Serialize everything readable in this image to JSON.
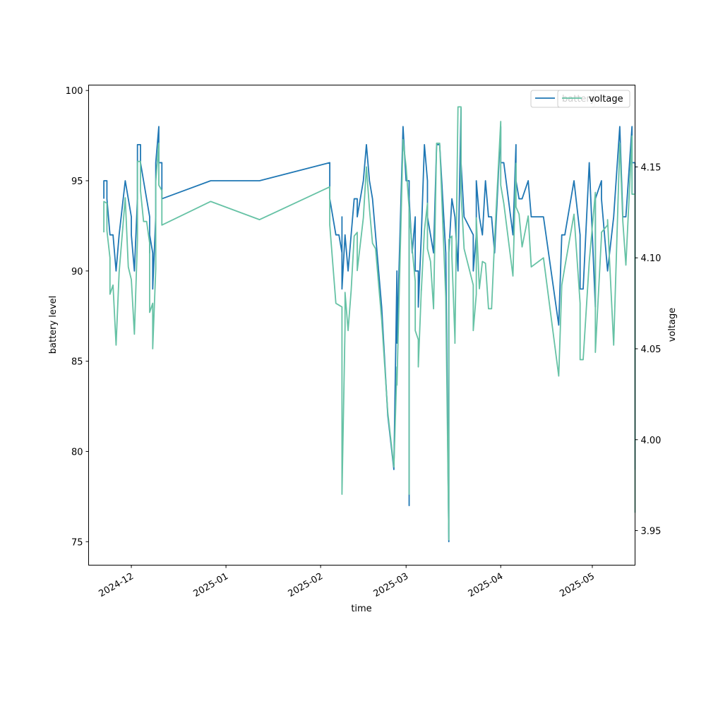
{
  "chart_data": {
    "type": "line",
    "xlabel": "time",
    "ylabel_left": "battery level",
    "ylabel_right": "voltage",
    "xlim": [
      "2024-11-17",
      "2025-05-15"
    ],
    "ylim_left": [
      73.7,
      100.3
    ],
    "ylim_right": [
      3.931,
      4.195
    ],
    "x_ticks": [
      {
        "date": "2024-12-01",
        "label": "2024-12"
      },
      {
        "date": "2025-01-01",
        "label": "2025-01"
      },
      {
        "date": "2025-02-01",
        "label": "2025-02"
      },
      {
        "date": "2025-03-01",
        "label": "2025-03"
      },
      {
        "date": "2025-04-01",
        "label": "2025-04"
      },
      {
        "date": "2025-05-01",
        "label": "2025-05"
      }
    ],
    "y_ticks_left": [
      75,
      80,
      85,
      90,
      95,
      100
    ],
    "y_ticks_right": [
      3.95,
      4.0,
      4.05,
      4.1,
      4.15
    ],
    "y_tick_labels_right": [
      "3.95",
      "4.00",
      "4.05",
      "4.10",
      "4.15"
    ],
    "grid": false,
    "legend": [
      {
        "name": "battery",
        "location": "top-right"
      },
      {
        "name": "voltage",
        "location": "top-right"
      }
    ],
    "series": [
      {
        "name": "battery",
        "axis": "left",
        "color": "#1f77b4",
        "points": [
          [
            "2024-11-22",
            94
          ],
          [
            "2024-11-22",
            95
          ],
          [
            "2024-11-23",
            95
          ],
          [
            "2024-11-23",
            94
          ],
          [
            "2024-11-24",
            92
          ],
          [
            "2024-11-25",
            92
          ],
          [
            "2024-11-26",
            90
          ],
          [
            "2024-11-27",
            92
          ],
          [
            "2024-11-29",
            95
          ],
          [
            "2024-11-30",
            94
          ],
          [
            "2024-11-30",
            94
          ],
          [
            "2024-12-01",
            93
          ],
          [
            "2024-12-01",
            92
          ],
          [
            "2024-12-02",
            90
          ],
          [
            "2024-12-03",
            94
          ],
          [
            "2024-12-03",
            97
          ],
          [
            "2024-12-04",
            97
          ],
          [
            "2024-12-04",
            96
          ],
          [
            "2024-12-05",
            95
          ],
          [
            "2024-12-07",
            93
          ],
          [
            "2024-12-07",
            91
          ],
          [
            "2024-12-07",
            92
          ],
          [
            "2024-12-08",
            91
          ],
          [
            "2024-12-08",
            89
          ],
          [
            "2024-12-09",
            93
          ],
          [
            "2024-12-09",
            96
          ],
          [
            "2024-12-10",
            98
          ],
          [
            "2024-12-10",
            96
          ],
          [
            "2024-12-11",
            96
          ],
          [
            "2024-12-11",
            94
          ],
          [
            "2024-12-27",
            95
          ],
          [
            "2025-01-12",
            95
          ],
          [
            "2025-02-04",
            96
          ],
          [
            "2025-02-04",
            94
          ],
          [
            "2025-02-06",
            92
          ],
          [
            "2025-02-07",
            92
          ],
          [
            "2025-02-08",
            91
          ],
          [
            "2025-02-08",
            93
          ],
          [
            "2025-02-08",
            89
          ],
          [
            "2025-02-09",
            92
          ],
          [
            "2025-02-09",
            92
          ],
          [
            "2025-02-10",
            90
          ],
          [
            "2025-02-10",
            90
          ],
          [
            "2025-02-11",
            92
          ],
          [
            "2025-02-12",
            94
          ],
          [
            "2025-02-13",
            94
          ],
          [
            "2025-02-13",
            93
          ],
          [
            "2025-02-15",
            95
          ],
          [
            "2025-02-16",
            97
          ],
          [
            "2025-02-17",
            95
          ],
          [
            "2025-02-17",
            95
          ],
          [
            "2025-02-18",
            94
          ],
          [
            "2025-02-18",
            94
          ],
          [
            "2025-02-19",
            92
          ],
          [
            "2025-02-21",
            88
          ],
          [
            "2025-02-23",
            82
          ],
          [
            "2025-02-25",
            79
          ],
          [
            "2025-02-26",
            90
          ],
          [
            "2025-02-26",
            86
          ],
          [
            "2025-02-28",
            98
          ],
          [
            "2025-03-01",
            95
          ],
          [
            "2025-03-02",
            95
          ],
          [
            "2025-03-02",
            77
          ],
          [
            "2025-03-02",
            94
          ],
          [
            "2025-03-03",
            91
          ],
          [
            "2025-03-04",
            93
          ],
          [
            "2025-03-04",
            90
          ],
          [
            "2025-03-05",
            90
          ],
          [
            "2025-03-05",
            88
          ],
          [
            "2025-03-06",
            92
          ],
          [
            "2025-03-06",
            92
          ],
          [
            "2025-03-07",
            97
          ],
          [
            "2025-03-08",
            95
          ],
          [
            "2025-03-08",
            93
          ],
          [
            "2025-03-09",
            92
          ],
          [
            "2025-03-10",
            91
          ],
          [
            "2025-03-11",
            97
          ],
          [
            "2025-03-12",
            97
          ],
          [
            "2025-03-13",
            94
          ],
          [
            "2025-03-14",
            91
          ],
          [
            "2025-03-15",
            75
          ],
          [
            "2025-03-15",
            91
          ],
          [
            "2025-03-16",
            94
          ],
          [
            "2025-03-16",
            94
          ],
          [
            "2025-03-17",
            93
          ],
          [
            "2025-03-17",
            93
          ],
          [
            "2025-03-18",
            90
          ],
          [
            "2025-03-19",
            99
          ],
          [
            "2025-03-19",
            99
          ],
          [
            "2025-03-19",
            96
          ],
          [
            "2025-03-20",
            93
          ],
          [
            "2025-03-23",
            92
          ],
          [
            "2025-03-23",
            90
          ],
          [
            "2025-03-23",
            90
          ],
          [
            "2025-03-24",
            92
          ],
          [
            "2025-03-24",
            95
          ],
          [
            "2025-03-25",
            93
          ],
          [
            "2025-03-26",
            92
          ],
          [
            "2025-03-27",
            95
          ],
          [
            "2025-03-28",
            93
          ],
          [
            "2025-03-29",
            93
          ],
          [
            "2025-03-30",
            91
          ],
          [
            "2025-04-01",
            98
          ],
          [
            "2025-04-01",
            96
          ],
          [
            "2025-04-02",
            96
          ],
          [
            "2025-04-05",
            92
          ],
          [
            "2025-04-06",
            97
          ],
          [
            "2025-04-06",
            95
          ],
          [
            "2025-04-07",
            94
          ],
          [
            "2025-04-08",
            94
          ],
          [
            "2025-04-10",
            95
          ],
          [
            "2025-04-11",
            93
          ],
          [
            "2025-04-15",
            93
          ],
          [
            "2025-04-20",
            87
          ],
          [
            "2025-04-21",
            92
          ],
          [
            "2025-04-22",
            92
          ],
          [
            "2025-04-25",
            95
          ],
          [
            "2025-04-27",
            92
          ],
          [
            "2025-04-27",
            89
          ],
          [
            "2025-04-28",
            89
          ],
          [
            "2025-04-30",
            96
          ],
          [
            "2025-05-02",
            88
          ],
          [
            "2025-05-02",
            94
          ],
          [
            "2025-05-04",
            95
          ],
          [
            "2025-05-04",
            94
          ],
          [
            "2025-05-06",
            90
          ],
          [
            "2025-05-08",
            93
          ],
          [
            "2025-05-10",
            98
          ],
          [
            "2025-05-11",
            93
          ],
          [
            "2025-05-12",
            93
          ],
          [
            "2025-05-14",
            98
          ],
          [
            "2025-05-14",
            96
          ],
          [
            "2025-05-15",
            96
          ],
          [
            "2025-05-15",
            79
          ],
          [
            "2025-05-15",
            94
          ]
        ]
      },
      {
        "name": "voltage",
        "axis": "right",
        "color": "#66c2a5",
        "points": [
          [
            "2024-11-22",
            4.114
          ],
          [
            "2024-11-22",
            4.131
          ],
          [
            "2024-11-23",
            4.13
          ],
          [
            "2024-11-23",
            4.115
          ],
          [
            "2024-11-24",
            4.1
          ],
          [
            "2024-11-24",
            4.08
          ],
          [
            "2024-11-25",
            4.085
          ],
          [
            "2024-11-26",
            4.052
          ],
          [
            "2024-11-27",
            4.092
          ],
          [
            "2024-11-29",
            4.133
          ],
          [
            "2024-11-30",
            4.095
          ],
          [
            "2024-12-01",
            4.088
          ],
          [
            "2024-12-02",
            4.058
          ],
          [
            "2024-12-03",
            4.11
          ],
          [
            "2024-12-03",
            4.153
          ],
          [
            "2024-12-04",
            4.153
          ],
          [
            "2024-12-04",
            4.137
          ],
          [
            "2024-12-05",
            4.12
          ],
          [
            "2024-12-06",
            4.12
          ],
          [
            "2024-12-07",
            4.108
          ],
          [
            "2024-12-07",
            4.07
          ],
          [
            "2024-12-08",
            4.075
          ],
          [
            "2024-12-08",
            4.05
          ],
          [
            "2024-12-09",
            4.094
          ],
          [
            "2024-12-09",
            4.142
          ],
          [
            "2024-12-10",
            4.163
          ],
          [
            "2024-12-10",
            4.14
          ],
          [
            "2024-12-11",
            4.137
          ],
          [
            "2024-12-11",
            4.118
          ],
          [
            "2024-12-27",
            4.131
          ],
          [
            "2025-01-12",
            4.121
          ],
          [
            "2025-02-04",
            4.139
          ],
          [
            "2025-02-04",
            4.118
          ],
          [
            "2025-02-06",
            4.075
          ],
          [
            "2025-02-07",
            4.074
          ],
          [
            "2025-02-08",
            4.073
          ],
          [
            "2025-02-08",
            3.97
          ],
          [
            "2025-02-09",
            4.062
          ],
          [
            "2025-02-09",
            4.081
          ],
          [
            "2025-02-10",
            4.06
          ],
          [
            "2025-02-11",
            4.082
          ],
          [
            "2025-02-12",
            4.112
          ],
          [
            "2025-02-13",
            4.114
          ],
          [
            "2025-02-13",
            4.093
          ],
          [
            "2025-02-15",
            4.122
          ],
          [
            "2025-02-16",
            4.15
          ],
          [
            "2025-02-17",
            4.127
          ],
          [
            "2025-02-17",
            4.127
          ],
          [
            "2025-02-18",
            4.108
          ],
          [
            "2025-02-19",
            4.105
          ],
          [
            "2025-02-21",
            4.066
          ],
          [
            "2025-02-23",
            4.015
          ],
          [
            "2025-02-25",
            3.985
          ],
          [
            "2025-02-26",
            4.04
          ],
          [
            "2025-02-26",
            4.03
          ],
          [
            "2025-02-28",
            4.165
          ],
          [
            "2025-03-01",
            4.15
          ],
          [
            "2025-03-02",
            4.127
          ],
          [
            "2025-03-02",
            3.97
          ],
          [
            "2025-03-02",
            4.127
          ],
          [
            "2025-03-03",
            4.105
          ],
          [
            "2025-03-04",
            4.087
          ],
          [
            "2025-03-04",
            4.06
          ],
          [
            "2025-03-05",
            4.055
          ],
          [
            "2025-03-05",
            4.04
          ],
          [
            "2025-03-06",
            4.083
          ],
          [
            "2025-03-06",
            4.082
          ],
          [
            "2025-03-07",
            4.115
          ],
          [
            "2025-03-08",
            4.13
          ],
          [
            "2025-03-08",
            4.105
          ],
          [
            "2025-03-09",
            4.098
          ],
          [
            "2025-03-10",
            4.072
          ],
          [
            "2025-03-11",
            4.163
          ],
          [
            "2025-03-12",
            4.163
          ],
          [
            "2025-03-13",
            4.12
          ],
          [
            "2025-03-14",
            4.078
          ],
          [
            "2025-03-15",
            3.945
          ],
          [
            "2025-03-15",
            4.11
          ],
          [
            "2025-03-16",
            4.112
          ],
          [
            "2025-03-16",
            4.101
          ],
          [
            "2025-03-17",
            4.055
          ],
          [
            "2025-03-17",
            4.053
          ],
          [
            "2025-03-18",
            4.183
          ],
          [
            "2025-03-19",
            4.183
          ],
          [
            "2025-03-19",
            4.136
          ],
          [
            "2025-03-20",
            4.105
          ],
          [
            "2025-03-23",
            4.085
          ],
          [
            "2025-03-23",
            4.06
          ],
          [
            "2025-03-23",
            4.06
          ],
          [
            "2025-03-24",
            4.08
          ],
          [
            "2025-03-24",
            4.122
          ],
          [
            "2025-03-25",
            4.083
          ],
          [
            "2025-03-26",
            4.098
          ],
          [
            "2025-03-27",
            4.097
          ],
          [
            "2025-03-28",
            4.072
          ],
          [
            "2025-03-29",
            4.072
          ],
          [
            "2025-03-30",
            4.11
          ],
          [
            "2025-04-01",
            4.175
          ],
          [
            "2025-04-01",
            4.14
          ],
          [
            "2025-04-02",
            4.13
          ],
          [
            "2025-04-05",
            4.09
          ],
          [
            "2025-04-06",
            4.152
          ],
          [
            "2025-04-06",
            4.128
          ],
          [
            "2025-04-07",
            4.124
          ],
          [
            "2025-04-08",
            4.106
          ],
          [
            "2025-04-10",
            4.123
          ],
          [
            "2025-04-11",
            4.095
          ],
          [
            "2025-04-15",
            4.1
          ],
          [
            "2025-04-20",
            4.035
          ],
          [
            "2025-04-21",
            4.085
          ],
          [
            "2025-04-22",
            4.095
          ],
          [
            "2025-04-25",
            4.124
          ],
          [
            "2025-04-27",
            4.075
          ],
          [
            "2025-04-27",
            4.044
          ],
          [
            "2025-04-28",
            4.044
          ],
          [
            "2025-04-30",
            4.098
          ],
          [
            "2025-05-02",
            4.136
          ],
          [
            "2025-05-02",
            4.048
          ],
          [
            "2025-05-04",
            4.112
          ],
          [
            "2025-05-04",
            4.114
          ],
          [
            "2025-05-06",
            4.118
          ],
          [
            "2025-05-06",
            4.121
          ],
          [
            "2025-05-08",
            4.052
          ],
          [
            "2025-05-10",
            4.163
          ],
          [
            "2025-05-11",
            4.12
          ],
          [
            "2025-05-12",
            4.096
          ],
          [
            "2025-05-14",
            4.167
          ],
          [
            "2025-05-14",
            4.135
          ],
          [
            "2025-05-15",
            4.135
          ],
          [
            "2025-05-15",
            3.96
          ],
          [
            "2025-05-15",
            4.135
          ]
        ]
      }
    ]
  }
}
